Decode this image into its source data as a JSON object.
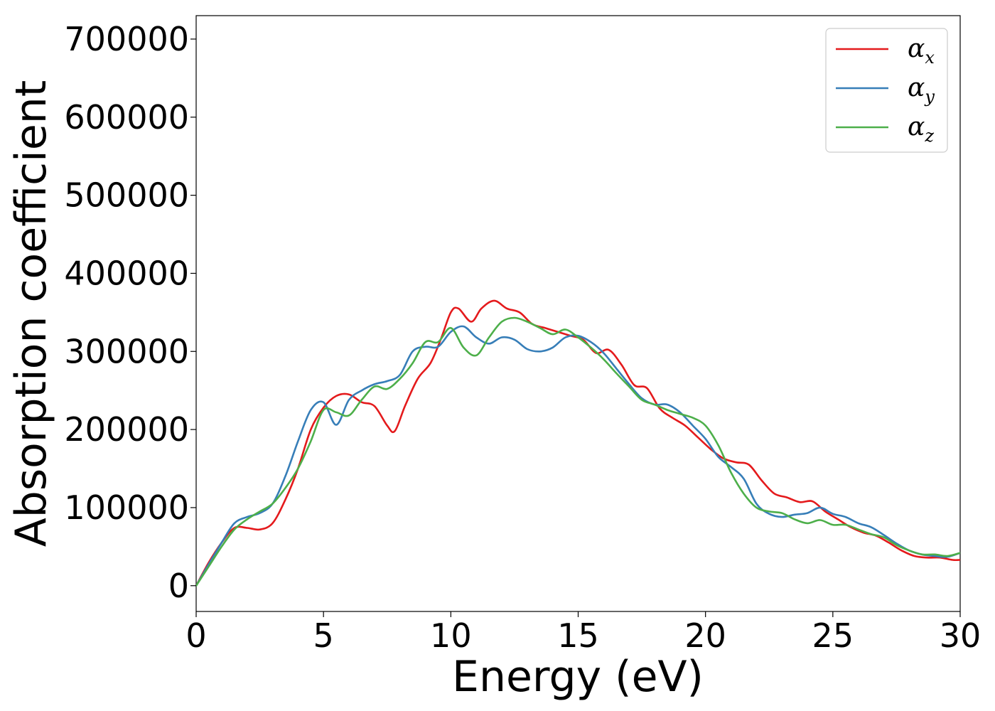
{
  "chart_data": {
    "type": "line",
    "xlabel": "Energy (eV)",
    "ylabel": "Absorption coefficient",
    "xlim": [
      0,
      30
    ],
    "ylim": [
      -33000,
      730000
    ],
    "xticks": [
      0,
      5,
      10,
      15,
      20,
      25,
      30
    ],
    "xtick_labels": [
      "0",
      "5",
      "10",
      "15",
      "20",
      "25",
      "30"
    ],
    "yticks": [
      0,
      100000,
      200000,
      300000,
      400000,
      500000,
      600000,
      700000
    ],
    "ytick_labels": [
      "0",
      "100000",
      "200000",
      "300000",
      "400000",
      "500000",
      "600000",
      "700000"
    ],
    "grid": false,
    "legend_position": "top-right",
    "series": [
      {
        "name": "α",
        "subscript": "x",
        "color": "#e41a1c",
        "x": [
          0,
          0.5,
          1,
          1.5,
          2,
          2.5,
          3,
          3.5,
          4,
          4.5,
          5,
          5.5,
          6,
          6.5,
          7,
          7.5,
          7.8,
          8.2,
          8.7,
          9.2,
          9.6,
          10,
          10.3,
          10.8,
          11.2,
          11.7,
          12.2,
          12.7,
          13.2,
          13.7,
          14.2,
          14.7,
          15.2,
          15.7,
          16.2,
          16.7,
          17.2,
          17.7,
          18.2,
          18.7,
          19.2,
          19.7,
          20.2,
          20.7,
          21.2,
          21.7,
          22.2,
          22.7,
          23.2,
          23.7,
          24.2,
          24.7,
          25.2,
          25.7,
          26.2,
          26.7,
          27.2,
          27.7,
          28.2,
          28.7,
          29.2,
          29.7,
          30
        ],
        "values": [
          0,
          30000,
          55000,
          74000,
          74000,
          72000,
          80000,
          110000,
          150000,
          200000,
          228000,
          243000,
          245000,
          235000,
          230000,
          205000,
          198000,
          230000,
          265000,
          285000,
          315000,
          350000,
          355000,
          338000,
          355000,
          365000,
          355000,
          350000,
          335000,
          330000,
          325000,
          320000,
          315000,
          298000,
          302000,
          283000,
          257000,
          253000,
          227000,
          215000,
          205000,
          190000,
          175000,
          163000,
          158000,
          155000,
          135000,
          118000,
          113000,
          107000,
          108000,
          95000,
          85000,
          75000,
          68000,
          64000,
          55000,
          45000,
          38000,
          36000,
          36000,
          33000,
          33000
        ]
      },
      {
        "name": "α",
        "subscript": "y",
        "color": "#377eb8",
        "x": [
          0,
          0.5,
          1,
          1.5,
          2,
          2.5,
          3,
          3.5,
          4,
          4.5,
          5,
          5.5,
          6,
          6.5,
          7,
          7.5,
          8,
          8.5,
          9,
          9.5,
          10,
          10.5,
          11,
          11.5,
          12,
          12.5,
          13,
          13.5,
          14,
          14.5,
          15,
          15.5,
          16,
          16.5,
          17,
          17.5,
          18,
          18.5,
          19,
          19.5,
          20,
          20.5,
          21,
          21.5,
          22,
          22.5,
          23,
          23.5,
          24,
          24.5,
          25,
          25.5,
          26,
          26.5,
          27,
          27.5,
          28,
          28.5,
          29,
          29.5,
          30
        ],
        "values": [
          0,
          28000,
          55000,
          80000,
          88000,
          93000,
          105000,
          140000,
          185000,
          225000,
          235000,
          206000,
          238000,
          250000,
          258000,
          262000,
          270000,
          300000,
          306000,
          306000,
          325000,
          332000,
          318000,
          310000,
          318000,
          315000,
          303000,
          300000,
          305000,
          318000,
          320000,
          312000,
          298000,
          278000,
          258000,
          240000,
          232000,
          232000,
          222000,
          205000,
          188000,
          165000,
          152000,
          137000,
          105000,
          92000,
          88000,
          91000,
          93000,
          100000,
          92000,
          88000,
          80000,
          75000,
          65000,
          54000,
          45000,
          40000,
          38000,
          37000,
          42000
        ]
      },
      {
        "name": "α",
        "subscript": "z",
        "color": "#4daf4a",
        "x": [
          0,
          0.5,
          1,
          1.5,
          2,
          2.5,
          3,
          3.5,
          4,
          4.5,
          5,
          5.5,
          6,
          6.5,
          7,
          7.5,
          8,
          8.5,
          9,
          9.5,
          10,
          10.5,
          11,
          11.5,
          12,
          12.5,
          13,
          13.5,
          14,
          14.5,
          15,
          15.5,
          16,
          16.5,
          17,
          17.5,
          18,
          18.5,
          19,
          19.5,
          20,
          20.5,
          21,
          21.5,
          22,
          22.5,
          23,
          23.5,
          24,
          24.5,
          25,
          25.5,
          26,
          26.5,
          27,
          27.5,
          28,
          28.5,
          29,
          29.5,
          30
        ],
        "values": [
          0,
          25000,
          50000,
          72000,
          85000,
          95000,
          105000,
          125000,
          150000,
          185000,
          225000,
          222000,
          218000,
          238000,
          255000,
          252000,
          265000,
          285000,
          312000,
          312000,
          330000,
          305000,
          295000,
          318000,
          338000,
          343000,
          338000,
          330000,
          322000,
          328000,
          318000,
          305000,
          290000,
          272000,
          255000,
          238000,
          232000,
          225000,
          220000,
          215000,
          205000,
          180000,
          145000,
          118000,
          100000,
          95000,
          93000,
          85000,
          80000,
          84000,
          78000,
          78000,
          72000,
          66000,
          62000,
          52000,
          45000,
          40000,
          40000,
          38000,
          42000
        ]
      }
    ]
  }
}
